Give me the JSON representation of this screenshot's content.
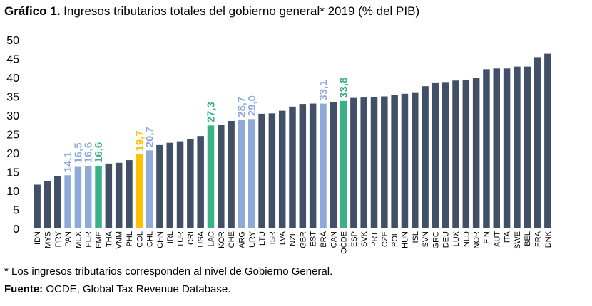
{
  "title": {
    "prefix": "Gráfico 1.",
    "text": " Ingresos tributarios totales del gobierno general* 2019 (% del PIB)"
  },
  "footnote": "* Los ingresos tributarios corresponden al nivel de Gobierno General.",
  "source": {
    "label": "Fuente:",
    "text": " OCDE, Global Tax Revenue Database."
  },
  "colors": {
    "default": "#414f67",
    "latam": "#8eaadb",
    "colombia": "#ffc000",
    "aggregate": "#3ab288"
  },
  "chart_data": {
    "type": "bar",
    "categories": [
      "IDN",
      "MYS",
      "PRY",
      "PAN",
      "MEX",
      "PER",
      "EME",
      "THA",
      "VNM",
      "PHL",
      "COL",
      "CHL",
      "CHN",
      "IRL",
      "TUR",
      "CRI",
      "USA",
      "LAC",
      "KOR",
      "CHE",
      "ARG",
      "URY",
      "LTU",
      "ISR",
      "LVA",
      "NZL",
      "GBR",
      "EST",
      "BRA",
      "CAN",
      "OCDE",
      "ESP",
      "SVK",
      "PRT",
      "CZE",
      "POL",
      "HUN",
      "ISL",
      "SVN",
      "GRC",
      "DEU",
      "LUX",
      "NLD",
      "NOR",
      "FIN",
      "AUT",
      "ITA",
      "SWE",
      "BEL",
      "FRA",
      "DNK"
    ],
    "values": [
      11.6,
      12.5,
      13.9,
      14.1,
      16.5,
      16.6,
      16.6,
      17.2,
      17.4,
      18.1,
      19.7,
      20.7,
      22.1,
      22.7,
      23.1,
      23.6,
      24.5,
      27.3,
      27.4,
      28.5,
      28.7,
      29.0,
      30.4,
      30.5,
      31.2,
      32.3,
      33.0,
      33.1,
      33.1,
      33.5,
      33.8,
      34.6,
      34.7,
      34.8,
      35.0,
      35.3,
      35.7,
      36.1,
      37.7,
      38.7,
      38.8,
      39.2,
      39.4,
      39.9,
      42.2,
      42.4,
      42.4,
      42.9,
      42.9,
      45.4,
      46.3
    ],
    "groups": [
      "default",
      "default",
      "default",
      "latam",
      "latam",
      "latam",
      "aggregate",
      "default",
      "default",
      "default",
      "colombia",
      "latam",
      "default",
      "default",
      "default",
      "default",
      "default",
      "aggregate",
      "default",
      "default",
      "latam",
      "latam",
      "default",
      "default",
      "default",
      "default",
      "default",
      "default",
      "latam",
      "default",
      "aggregate",
      "default",
      "default",
      "default",
      "default",
      "default",
      "default",
      "default",
      "default",
      "default",
      "default",
      "default",
      "default",
      "default",
      "default",
      "default",
      "default",
      "default",
      "default",
      "default",
      "default"
    ],
    "data_labels": [
      "",
      "",
      "",
      "14,1",
      "16,5",
      "16,6",
      "16,6",
      "",
      "",
      "",
      "19,7",
      "20,7",
      "",
      "",
      "",
      "",
      "",
      "27,3",
      "",
      "",
      "28,7",
      "29,0",
      "",
      "",
      "",
      "",
      "",
      "",
      "33,1",
      "",
      "33,8",
      "",
      "",
      "",
      "",
      "",
      "",
      "",
      "",
      "",
      "",
      "",
      "",
      "",
      "",
      "",
      "",
      "",
      "",
      "",
      ""
    ],
    "ylim": [
      0,
      50
    ],
    "yticks": [
      "0",
      "5",
      "10",
      "15",
      "20",
      "25",
      "30",
      "35",
      "40",
      "45",
      "50"
    ],
    "grid": false,
    "legend": "none"
  }
}
